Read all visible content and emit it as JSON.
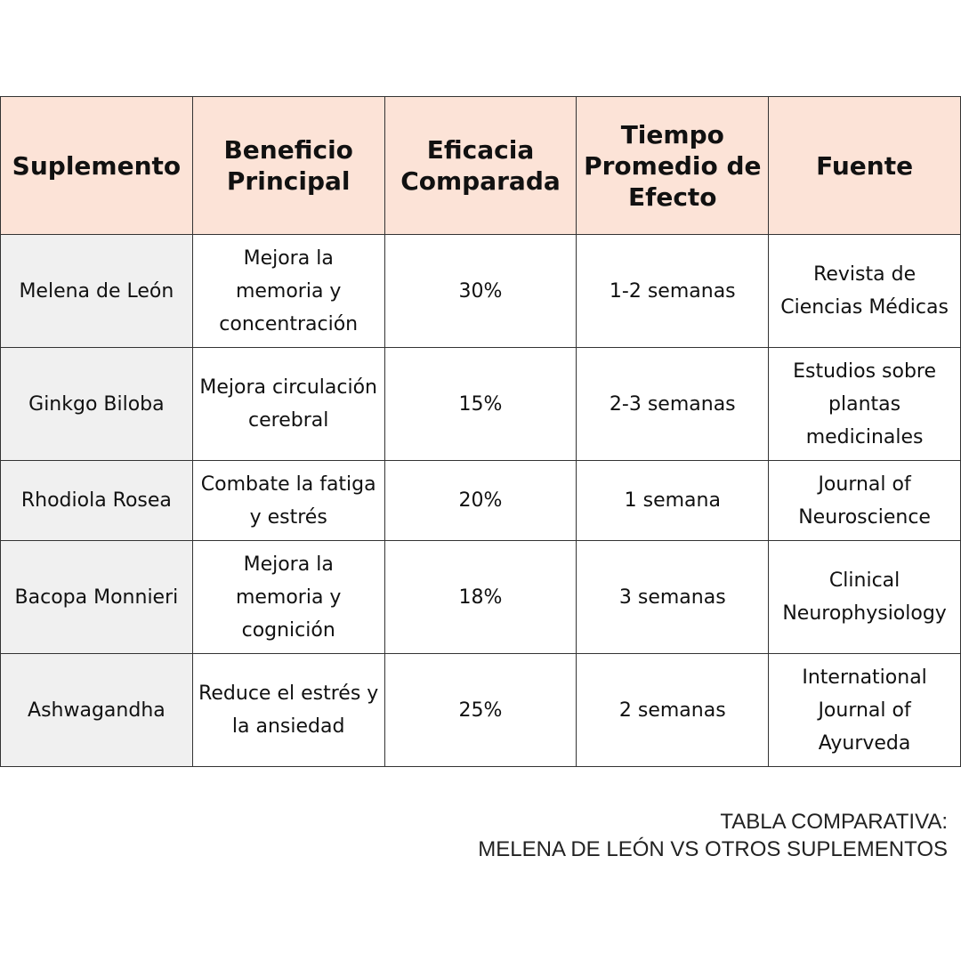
{
  "table": {
    "headers": [
      "Suplemento",
      "Beneficio Principal",
      "Eficacia Comparada",
      "Tiempo Promedio de Efecto",
      "Fuente"
    ],
    "rows": [
      [
        "Melena de León",
        "Mejora la memoria y concentración",
        "30%",
        "1-2 semanas",
        "Revista de Ciencias Médicas"
      ],
      [
        "Ginkgo Biloba",
        "Mejora circulación cerebral",
        "15%",
        "2-3 semanas",
        "Estudios sobre plantas medicinales"
      ],
      [
        "Rhodiola Rosea",
        "Combate la fatiga y estrés",
        "20%",
        "1 semana",
        "Journal of Neuroscience"
      ],
      [
        "Bacopa Monnieri",
        "Mejora la memoria y cognición",
        "18%",
        "3 semanas",
        "Clinical Neurophysiology"
      ],
      [
        "Ashwagandha",
        "Reduce el estrés y la ansiedad",
        "25%",
        "2 semanas",
        "International Journal of Ayurveda"
      ]
    ]
  },
  "caption": {
    "line1": "TABLA COMPARATIVA:",
    "line2": "MELENA DE LEÓN VS OTROS SUPLEMENTOS"
  },
  "colors": {
    "header_bg": "#fce3d7",
    "first_col_bg": "#f0f0f0",
    "border": "#333333"
  }
}
